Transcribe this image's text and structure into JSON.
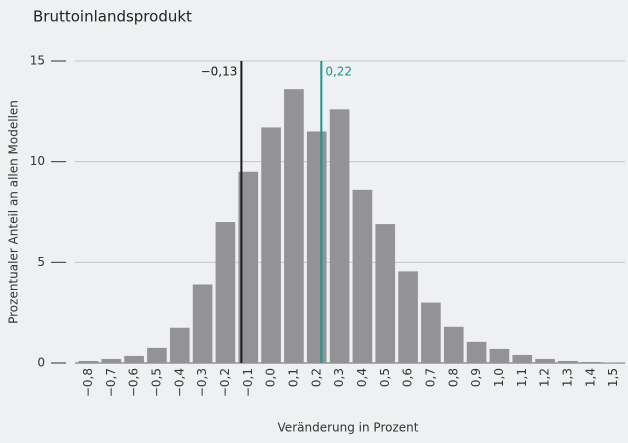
{
  "chart_data": {
    "type": "bar",
    "title": "Bruttoinlandsprodukt",
    "xlabel": "Veränderung in Prozent",
    "ylabel": "Prozentualer Anteil an allen Modellen",
    "x": [
      -0.8,
      -0.7,
      -0.6,
      -0.5,
      -0.4,
      -0.3,
      -0.2,
      -0.1,
      0.0,
      0.1,
      0.2,
      0.3,
      0.4,
      0.5,
      0.6,
      0.7,
      0.8,
      0.9,
      1.0,
      1.1,
      1.2,
      1.3,
      1.4,
      1.5
    ],
    "values": [
      0.1,
      0.2,
      0.35,
      0.75,
      1.75,
      3.9,
      7.0,
      9.5,
      11.7,
      13.6,
      11.5,
      12.6,
      8.6,
      6.9,
      4.55,
      3.0,
      1.8,
      1.05,
      0.7,
      0.4,
      0.2,
      0.1,
      0.05,
      0.02
    ],
    "color": "#939395",
    "xlim": [
      -0.85,
      1.55
    ],
    "xticks": [
      {
        "value": -0.8,
        "label": "−0,8"
      },
      {
        "value": -0.7,
        "label": "−0,7"
      },
      {
        "value": -0.6,
        "label": "−0,6"
      },
      {
        "value": -0.5,
        "label": "−0,5"
      },
      {
        "value": -0.4,
        "label": "−0,4"
      },
      {
        "value": -0.3,
        "label": "−0,3"
      },
      {
        "value": -0.2,
        "label": "−0,2"
      },
      {
        "value": -0.1,
        "label": "−0,1"
      },
      {
        "value": 0.0,
        "label": "0,0"
      },
      {
        "value": 0.1,
        "label": "0,1"
      },
      {
        "value": 0.2,
        "label": "0,2"
      },
      {
        "value": 0.3,
        "label": "0,3"
      },
      {
        "value": 0.4,
        "label": "0,4"
      },
      {
        "value": 0.5,
        "label": "0,5"
      },
      {
        "value": 0.6,
        "label": "0,6"
      },
      {
        "value": 0.7,
        "label": "0,7"
      },
      {
        "value": 0.8,
        "label": "0,8"
      },
      {
        "value": 0.9,
        "label": "0,9"
      },
      {
        "value": 1.0,
        "label": "1,0"
      },
      {
        "value": 1.1,
        "label": "1,1"
      },
      {
        "value": 1.2,
        "label": "1,2"
      },
      {
        "value": 1.3,
        "label": "1,3"
      },
      {
        "value": 1.4,
        "label": "1,4"
      },
      {
        "value": 1.5,
        "label": "1,5"
      }
    ],
    "ylim": [
      0,
      15
    ],
    "yticks": [
      0,
      5,
      10,
      15
    ],
    "grid": true,
    "markers": [
      {
        "value": -0.13,
        "label": "−0,13",
        "color": "#1a1a1a"
      },
      {
        "value": 0.22,
        "label": "0,22",
        "color": "#1a968c"
      }
    ]
  }
}
